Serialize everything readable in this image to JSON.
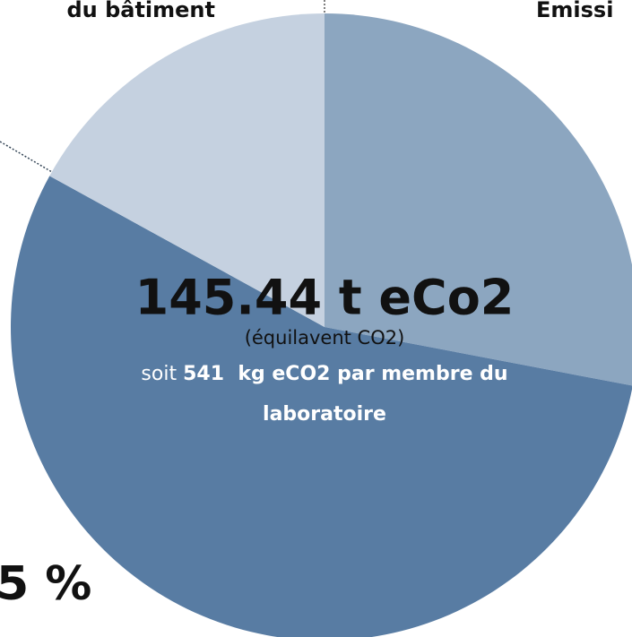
{
  "chart_data": {
    "type": "pie",
    "values": [
      28,
      55,
      17
    ],
    "colors": [
      "#8ca6c0",
      "#587ca3",
      "#c5d1e0"
    ],
    "total": "145.44 t eCo2",
    "total_note": "(équilavent CO2)",
    "per_member_prefix": "soit",
    "per_member": "541  kg eCO2 par membre du",
    "per_member_end": "laboratoire",
    "labels": [
      "Émissi",
      "5 %",
      "du bâtiment"
    ]
  }
}
